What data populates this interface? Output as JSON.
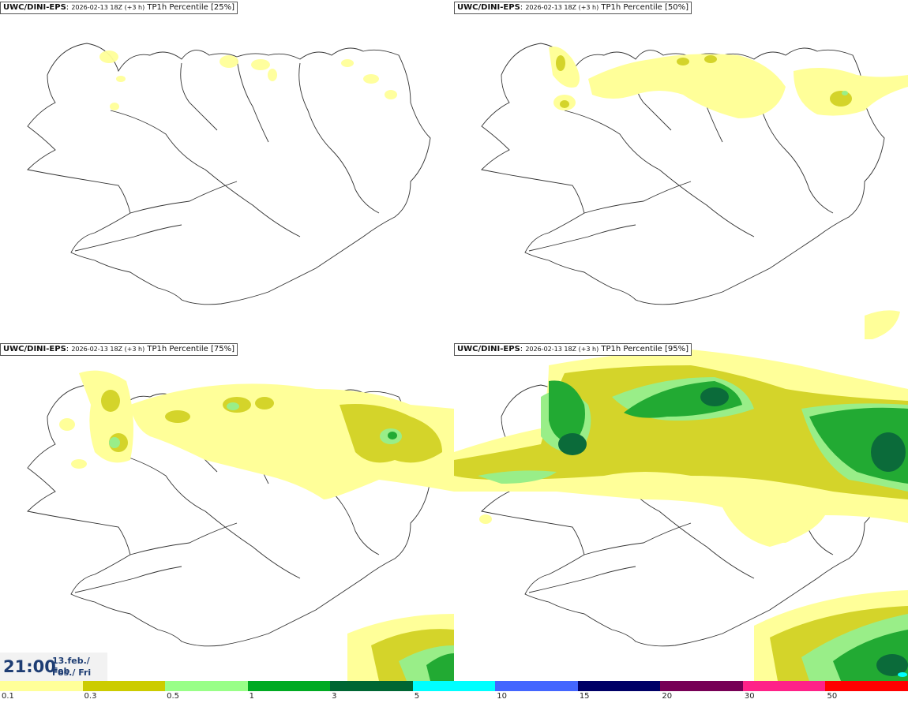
{
  "panels": [
    {
      "model": "UWC/DINI-EPS",
      "run": "2026-02-13 18Z (+3 h)",
      "field": "TP1h Percentile [25%]"
    },
    {
      "model": "UWC/DINI-EPS",
      "run": "2026-02-13 18Z (+3 h)",
      "field": "TP1h Percentile [50%]"
    },
    {
      "model": "UWC/DINI-EPS",
      "run": "2026-02-13 18Z (+3 h)",
      "field": "TP1h Percentile [75%]"
    },
    {
      "model": "UWC/DINI-EPS",
      "run": "2026-02-13 18Z (+3 h)",
      "field": "TP1h Percentile [95%]"
    }
  ],
  "valid_time": {
    "time": "21:00",
    "date_line1": "13.feb./ Feb",
    "date_line2": "Fös./ Fri"
  },
  "legend": {
    "ticks": [
      "0.1",
      "0.3",
      "0.5",
      "1",
      "3",
      "5",
      "10",
      "15",
      "20",
      "30",
      "50"
    ],
    "colors": [
      "#ffff99",
      "#cccc00",
      "#99ff88",
      "#00aa22",
      "#006633",
      "#00ffff",
      "#4466ff",
      "#000066",
      "#770055",
      "#ff2288",
      "#ff0000"
    ]
  },
  "colors": {
    "light": "#ffff99",
    "mid": "#d4d42a",
    "green_light": "#99ee88",
    "green": "#22aa33",
    "green_dark": "#0b6b3a"
  }
}
